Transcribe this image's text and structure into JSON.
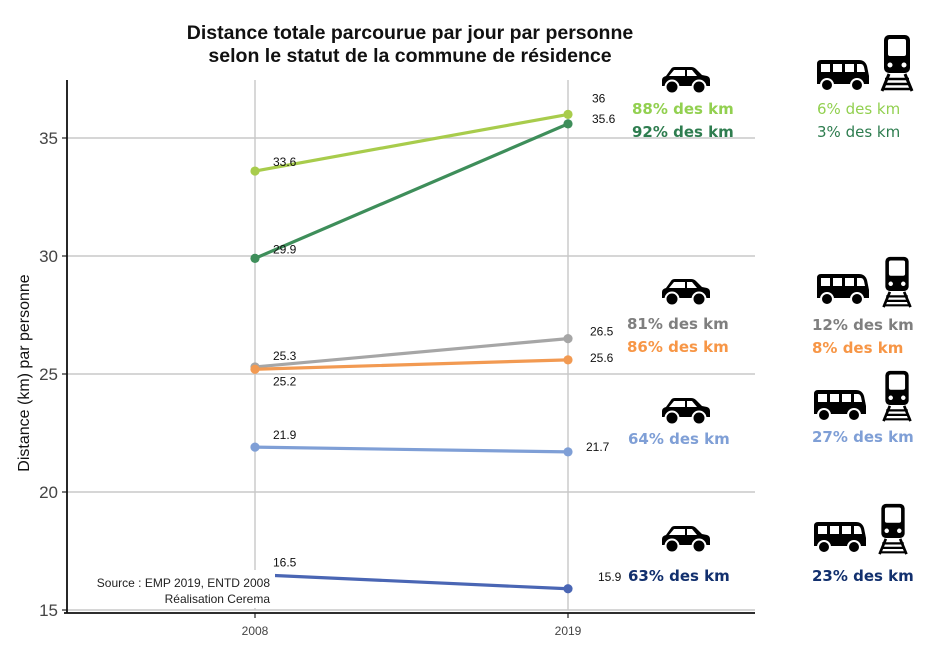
{
  "chart_data": {
    "type": "line",
    "title": "Distance totale parcourue par jour par personne",
    "subtitle": "selon le statut de la commune de résidence",
    "xlabel": "",
    "ylabel": "Distance (km) par personne",
    "x": [
      "2008",
      "2019"
    ],
    "ylim": [
      15,
      37
    ],
    "yticks": [
      15,
      20,
      25,
      30,
      35
    ],
    "grid": true,
    "series": [
      {
        "name": "series-light-green",
        "color": "#a8cc4c",
        "values": [
          33.6,
          36
        ],
        "labels": [
          "33.6",
          "36"
        ],
        "car_share": "88% des km",
        "tc_share": "6% des km"
      },
      {
        "name": "series-dark-green",
        "color": "#3e8e5a",
        "values": [
          29.9,
          35.6
        ],
        "labels": [
          "29.9",
          "35.6"
        ],
        "car_share": "92% des km",
        "tc_share": "3% des km"
      },
      {
        "name": "series-grey",
        "color": "#a6a6a6",
        "values": [
          25.3,
          26.5
        ],
        "labels": [
          "25.3",
          "26.5"
        ],
        "car_share": "81% des km",
        "tc_share": "12% des km"
      },
      {
        "name": "series-orange",
        "color": "#f29a52",
        "values": [
          25.2,
          25.6
        ],
        "labels": [
          "25.2",
          "25.6"
        ],
        "car_share": "86% des km",
        "tc_share": "8% des km"
      },
      {
        "name": "series-light-blue",
        "color": "#7f9fd6",
        "values": [
          21.9,
          21.7
        ],
        "labels": [
          "21.9",
          "21.7"
        ],
        "car_share": "64% des km",
        "tc_share": "27% des km"
      },
      {
        "name": "series-dark-blue",
        "color": "#4a66b4",
        "values": [
          16.5,
          15.9
        ],
        "labels": [
          "16.5",
          "15.9"
        ],
        "car_share": "63% des km",
        "tc_share": "23% des km"
      }
    ],
    "annotations": {
      "source": "Source : EMP 2019, ENTD 2008",
      "credit": "Réalisation Cerema"
    }
  },
  "text_colors": {
    "light_green": "#92d050",
    "dark_green": "#2e7d4f",
    "grey": "#7f7f7f",
    "orange": "#f79646",
    "light_blue": "#7f9fd6",
    "navy": "#12306e"
  },
  "icons": {
    "car": "car-icon",
    "bus": "bus-icon",
    "train": "train-icon"
  }
}
